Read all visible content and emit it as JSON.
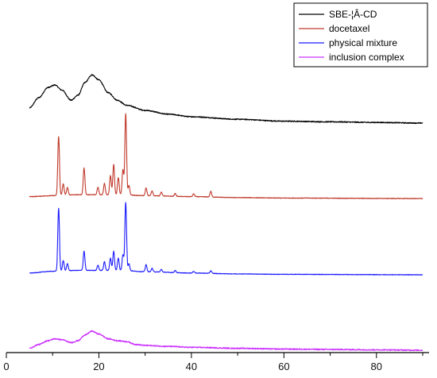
{
  "chart_data": {
    "type": "line",
    "title": "",
    "xlabel": "",
    "ylabel": "",
    "xlim": [
      0,
      90
    ],
    "x_ticks": [
      0,
      20,
      40,
      60,
      80
    ],
    "x_tick_labels": [
      "0",
      "20",
      "40",
      "60",
      "80"
    ],
    "grid": false,
    "y_axis_visible": false,
    "legend_position": "top-right",
    "series": [
      {
        "name": "SBE-¦Â-CD",
        "color": "#000000",
        "kind": "amorphous",
        "points": [
          [
            5,
            0.12
          ],
          [
            7,
            0.2
          ],
          [
            9,
            0.28
          ],
          [
            10.5,
            0.3
          ],
          [
            12,
            0.26
          ],
          [
            14,
            0.18
          ],
          [
            15.5,
            0.22
          ],
          [
            17,
            0.32
          ],
          [
            18.5,
            0.38
          ],
          [
            20,
            0.34
          ],
          [
            22,
            0.24
          ],
          [
            24,
            0.18
          ],
          [
            26,
            0.14
          ],
          [
            30,
            0.1
          ],
          [
            35,
            0.07
          ],
          [
            40,
            0.05
          ],
          [
            50,
            0.03
          ],
          [
            60,
            0.015
          ],
          [
            70,
            0.01
          ],
          [
            80,
            0.005
          ],
          [
            90,
            0
          ]
        ]
      },
      {
        "name": "docetaxel",
        "color": "#c0392b",
        "kind": "crystalline",
        "baseline": [
          [
            5,
            0.02
          ],
          [
            10,
            0.03
          ],
          [
            15,
            0.04
          ],
          [
            20,
            0.04
          ],
          [
            25,
            0.04
          ],
          [
            30,
            0.03
          ],
          [
            40,
            0.02
          ],
          [
            50,
            0.01
          ],
          [
            60,
            0.005
          ],
          [
            90,
            0
          ]
        ],
        "peaks": [
          [
            11.3,
            0.62
          ],
          [
            12.3,
            0.12
          ],
          [
            13.2,
            0.08
          ],
          [
            16.8,
            0.28
          ],
          [
            19.8,
            0.08
          ],
          [
            21.2,
            0.12
          ],
          [
            22.5,
            0.2
          ],
          [
            23.2,
            0.32
          ],
          [
            24.2,
            0.18
          ],
          [
            25.2,
            0.26
          ],
          [
            25.8,
            0.85
          ],
          [
            26.5,
            0.1
          ],
          [
            30.2,
            0.08
          ],
          [
            31.5,
            0.05
          ],
          [
            33.5,
            0.04
          ],
          [
            36.5,
            0.03
          ],
          [
            40.5,
            0.03
          ],
          [
            44.2,
            0.06
          ]
        ]
      },
      {
        "name": "physical mixture",
        "color": "#1a1aff",
        "kind": "crystalline",
        "baseline": [
          [
            5,
            0.02
          ],
          [
            10,
            0.04
          ],
          [
            15,
            0.05
          ],
          [
            20,
            0.05
          ],
          [
            25,
            0.05
          ],
          [
            30,
            0.035
          ],
          [
            40,
            0.02
          ],
          [
            50,
            0.01
          ],
          [
            60,
            0.005
          ],
          [
            90,
            0
          ]
        ],
        "peaks": [
          [
            11.3,
            0.72
          ],
          [
            12.3,
            0.12
          ],
          [
            13.2,
            0.08
          ],
          [
            16.8,
            0.22
          ],
          [
            19.8,
            0.06
          ],
          [
            21.2,
            0.1
          ],
          [
            22.5,
            0.14
          ],
          [
            23.2,
            0.22
          ],
          [
            24.2,
            0.14
          ],
          [
            25.2,
            0.18
          ],
          [
            25.8,
            0.78
          ],
          [
            26.5,
            0.08
          ],
          [
            30.2,
            0.08
          ],
          [
            31.5,
            0.04
          ],
          [
            33.5,
            0.03
          ],
          [
            36.5,
            0.025
          ],
          [
            40.5,
            0.02
          ],
          [
            44.2,
            0.03
          ]
        ]
      },
      {
        "name": "inclusion complex",
        "color": "#cc33ff",
        "kind": "amorphous",
        "points": [
          [
            5,
            0.02
          ],
          [
            7,
            0.06
          ],
          [
            9,
            0.1
          ],
          [
            10.5,
            0.12
          ],
          [
            12,
            0.11
          ],
          [
            14,
            0.08
          ],
          [
            15.5,
            0.1
          ],
          [
            17,
            0.16
          ],
          [
            18.5,
            0.2
          ],
          [
            20,
            0.17
          ],
          [
            22,
            0.12
          ],
          [
            24,
            0.1
          ],
          [
            26,
            0.09
          ],
          [
            28,
            0.06
          ],
          [
            30,
            0.05
          ],
          [
            35,
            0.04
          ],
          [
            40,
            0.03
          ],
          [
            50,
            0.02
          ],
          [
            60,
            0.012
          ],
          [
            70,
            0.008
          ],
          [
            80,
            0.004
          ],
          [
            90,
            0
          ]
        ]
      }
    ]
  }
}
